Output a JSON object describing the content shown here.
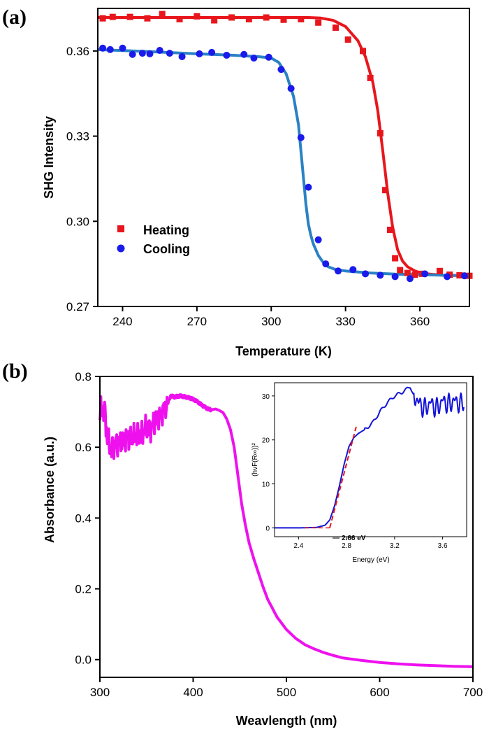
{
  "chart_data": [
    {
      "panel_label": "(a)",
      "type": "scatter",
      "xlabel": "Temperature (K)",
      "ylabel": "SHG Intensity",
      "xlim": [
        230,
        380
      ],
      "ylim": [
        0.27,
        0.375
      ],
      "xticks": [
        240,
        270,
        300,
        330,
        360
      ],
      "yticks": [
        0.27,
        0.3,
        0.33,
        0.36
      ],
      "ytick_labels": [
        "0.27",
        "0.30",
        "0.33",
        "0.36"
      ],
      "legend_position": "lower-left",
      "series": [
        {
          "name": "Heating",
          "color": "#e8161c",
          "marker": "square",
          "x": [
            232,
            236,
            243,
            250,
            256,
            263,
            270,
            277,
            284,
            291,
            298,
            305,
            312,
            319,
            326,
            331,
            337,
            340,
            344,
            346,
            348,
            350,
            352,
            355,
            358,
            361,
            368,
            372,
            376,
            380
          ],
          "y": [
            0.3715,
            0.372,
            0.372,
            0.3715,
            0.373,
            0.3712,
            0.3722,
            0.3708,
            0.3718,
            0.3712,
            0.3718,
            0.371,
            0.3712,
            0.37,
            0.3682,
            0.364,
            0.36,
            0.3505,
            0.331,
            0.311,
            0.297,
            0.287,
            0.2828,
            0.2818,
            0.2812,
            0.2815,
            0.2825,
            0.2812,
            0.281,
            0.2808
          ],
          "fit": {
            "x": [
              230,
              250,
              270,
              290,
              300,
              310,
              315,
              320,
              325,
              330,
              335,
              338,
              341,
              343,
              345,
              347,
              349,
              351,
              353,
              355,
              358,
              361,
              365,
              370,
              375,
              380
            ],
            "y": [
              0.3718,
              0.3718,
              0.3718,
              0.3718,
              0.3718,
              0.3718,
              0.3718,
              0.3716,
              0.3708,
              0.3686,
              0.3636,
              0.358,
              0.349,
              0.339,
              0.325,
              0.31,
              0.298,
              0.29,
              0.286,
              0.284,
              0.2825,
              0.2817,
              0.2813,
              0.281,
              0.2809,
              0.2808
            ]
          }
        },
        {
          "name": "Cooling",
          "color": "#1a1aea",
          "marker": "circle",
          "x": [
            232,
            235,
            240,
            244,
            248,
            251,
            255,
            259,
            264,
            271,
            276,
            282,
            289,
            293,
            299,
            304,
            308,
            312,
            315,
            319,
            322,
            327,
            333,
            338,
            344,
            350,
            356,
            362,
            371,
            378
          ],
          "y": [
            0.361,
            0.3605,
            0.361,
            0.3588,
            0.3592,
            0.359,
            0.3602,
            0.3592,
            0.358,
            0.359,
            0.3595,
            0.3585,
            0.3588,
            0.3575,
            0.3578,
            0.3535,
            0.3468,
            0.3295,
            0.312,
            0.2935,
            0.285,
            0.2825,
            0.283,
            0.2815,
            0.281,
            0.2805,
            0.2798,
            0.2815,
            0.2805,
            0.2808
          ],
          "fit": {
            "x": [
              230,
              250,
              270,
              285,
              295,
              300,
              303,
              306,
              309,
              311,
              312.5,
              314,
              315,
              316,
              317,
              319,
              321,
              323,
              326,
              330,
              340,
              350,
              360,
              370,
              380
            ],
            "y": [
              0.3605,
              0.3598,
              0.359,
              0.3585,
              0.358,
              0.3575,
              0.356,
              0.352,
              0.344,
              0.334,
              0.32,
              0.306,
              0.299,
              0.295,
              0.292,
              0.288,
              0.2855,
              0.284,
              0.283,
              0.2825,
              0.2818,
              0.2814,
              0.2812,
              0.281,
              0.2808
            ]
          }
        }
      ]
    },
    {
      "panel_label": "(b)",
      "type": "line",
      "xlabel": "Weavlength (nm)",
      "ylabel": "Absorbance (a.u.)",
      "xlim": [
        300,
        700
      ],
      "ylim": [
        -0.05,
        0.8
      ],
      "xticks": [
        300,
        400,
        500,
        600,
        700
      ],
      "yticks": [
        0.0,
        0.2,
        0.4,
        0.6,
        0.8
      ],
      "ytick_labels": [
        "0.0",
        "0.2",
        "0.4",
        "0.6",
        "0.8"
      ],
      "series": [
        {
          "name": "Absorbance",
          "color": "#ee11ee",
          "noise_range_nm": [
            300,
            372
          ],
          "x": [
            300,
            305,
            308,
            312,
            316,
            320,
            326,
            332,
            338,
            344,
            350,
            356,
            362,
            368,
            372,
            376,
            380,
            386,
            392,
            398,
            404,
            410,
            416,
            420,
            424,
            428,
            432,
            436,
            440,
            444,
            448,
            452,
            456,
            460,
            465,
            470,
            475,
            480,
            490,
            500,
            510,
            520,
            530,
            540,
            550,
            560,
            580,
            600,
            620,
            640,
            660,
            680,
            700
          ],
          "y": [
            0.7,
            0.71,
            0.62,
            0.59,
            0.61,
            0.61,
            0.62,
            0.63,
            0.63,
            0.64,
            0.65,
            0.66,
            0.68,
            0.7,
            0.72,
            0.745,
            0.742,
            0.745,
            0.742,
            0.738,
            0.73,
            0.718,
            0.708,
            0.706,
            0.708,
            0.704,
            0.698,
            0.68,
            0.65,
            0.6,
            0.52,
            0.44,
            0.38,
            0.33,
            0.285,
            0.245,
            0.205,
            0.17,
            0.12,
            0.085,
            0.06,
            0.042,
            0.03,
            0.02,
            0.012,
            0.005,
            -0.002,
            -0.008,
            -0.012,
            -0.015,
            -0.017,
            -0.019,
            -0.02
          ]
        }
      ],
      "inset": {
        "type": "line",
        "xlabel": "Energy (eV)",
        "ylabel": "(hvF(R∞))²",
        "xlim": [
          2.2,
          3.8
        ],
        "ylim": [
          -2,
          33
        ],
        "xticks": [
          2.4,
          2.8,
          3.2,
          3.6
        ],
        "xtick_labels": [
          "2.4",
          "2.8",
          "3.2",
          "3.6"
        ],
        "yticks": [
          0,
          10,
          20,
          30
        ],
        "ytick_labels": [
          "0",
          "10",
          "20",
          "30"
        ],
        "curve_color": "#1414d8",
        "noise_range_eV": [
          3.36,
          3.78
        ],
        "x": [
          2.2,
          2.4,
          2.55,
          2.62,
          2.66,
          2.7,
          2.74,
          2.78,
          2.82,
          2.86,
          2.9,
          2.96,
          3.02,
          3.08,
          3.14,
          3.2,
          3.26,
          3.3,
          3.33,
          3.36,
          3.4,
          3.45,
          3.5,
          3.55,
          3.6,
          3.65,
          3.7,
          3.75,
          3.78
        ],
        "y": [
          0.0,
          0.0,
          0.1,
          0.6,
          1.8,
          5.0,
          9.5,
          14.5,
          18.5,
          20.5,
          21.5,
          22.5,
          24.0,
          26.5,
          28.5,
          30.0,
          30.8,
          31.5,
          32.2,
          30.0,
          28.5,
          27.0,
          28.5,
          27.0,
          29.0,
          28.0,
          29.0,
          28.0,
          29.0
        ],
        "tangent": {
          "x": [
            2.66,
            2.88
          ],
          "y": [
            0,
            23
          ],
          "color": "#e8161c"
        },
        "tangent_baseline": {
          "x": [
            2.45,
            2.66
          ],
          "y": [
            0,
            0
          ]
        },
        "annotation": "2.66 eV"
      }
    }
  ]
}
